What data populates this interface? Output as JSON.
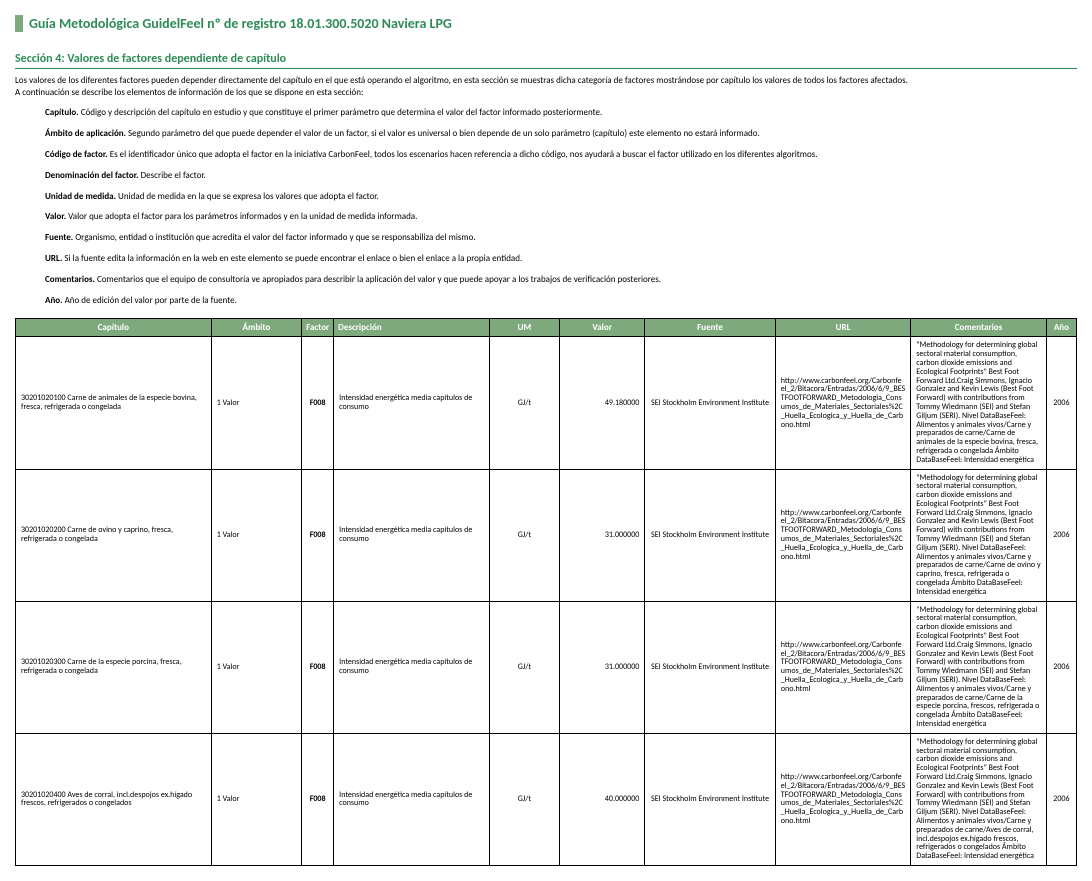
{
  "header": {
    "title": "Guía Metodológica GuidelFeel nº de registro 18.01.300.5020 Naviera LPG"
  },
  "section": {
    "title": "Sección 4: Valores de factores dependiente de capítulo",
    "intro_line1": "Los valores de los diferentes factores pueden depender directamente del capítulo en el que está operando el algoritmo, en esta sección se muestras dicha categoría de factores mostrándose por capítulo los valores de todos los factores afectados.",
    "intro_line2": "A continuación se describe los elementos de información de los que se dispone en esta sección:"
  },
  "definitions": [
    {
      "term": "Capítulo.",
      "desc": " Código y descripción del capítulo en estudio y que constituye el primer parámetro que determina el valor del factor informado posteriormente."
    },
    {
      "term": "Ámbito de aplicación.",
      "desc": " Segundo parámetro del que puede depender el valor de un factor, si el valor es universal o bien depende de un solo parámetro (capítulo) este elemento no estará informado."
    },
    {
      "term": "Código de factor.",
      "desc": " Es el identificador único que adopta el factor en la iniciativa CarbonFeel, todos los escenarios hacen referencia a dicho código, nos ayudará a buscar el factor utilizado en los diferentes algoritmos."
    },
    {
      "term": "Denominación del factor.",
      "desc": " Describe el factor."
    },
    {
      "term": "Unidad de medida.",
      "desc": " Unidad de medida en la que se expresa los valores que adopta el factor."
    },
    {
      "term": "Valor.",
      "desc": " Valor que adopta el factor para los parámetros informados y en la unidad de medida informada."
    },
    {
      "term": "Fuente.",
      "desc": " Organismo, entidad o institución que acredita el valor del factor informado y que se responsabiliza del mismo."
    },
    {
      "term": "URL.",
      "desc": " Si la fuente edita la información en la web en este elemento se puede encontrar el enlace o bien el enlace a la propia entidad."
    },
    {
      "term": "Comentarios.",
      "desc": " Comentarios que el equipo de consultoría ve apropiados para describir la aplicación del valor y que puede apoyar a los trabajos de verificación posteriores."
    },
    {
      "term": "Año.",
      "desc": " Año de edición del valor por parte de la fuente."
    }
  ],
  "table": {
    "headers": {
      "capitulo": "Capítulo",
      "ambito": "Ámbito",
      "factor": "Factor",
      "descripcion": "Descripción",
      "um": "UM",
      "valor": "Valor",
      "fuente": "Fuente",
      "url": "URL",
      "comentarios": "Comentarios",
      "ano": "Año"
    },
    "rows": [
      {
        "capitulo": "30201020100 Carne de animales de la especie bovina, fresca, refrigerada o congelada",
        "ambito": "1 Valor",
        "factor": "F008",
        "descripcion": "Intensidad energética media capítulos de consumo",
        "um": "GJ/t",
        "valor": "49.180000",
        "fuente": "SEI Stockholm Environment Institute",
        "url": "http://www.carbonfeel.org/Carbonfeel_2/Bitacora/Entradas/2006/6/9_BESTFOOTFORWARD_Metodologia_Consumos_de_Materiales_Sectoriales%2C_Huella_Ecologica_y_Huella_de_Carbono.html",
        "comentarios": "\"Methodology for determining global sectoral material consumption, carbon dioxide emissions and Ecological Footprints\" Best Foot Forward Ltd.Craig Simmons, Ignacio Gonzalez and Kevin Lewis (Best Foot Forward) with contributions from Tommy Wiedmann (SEI) and Stefan Giljum (SERI).  Nivel DataBaseFeel: Alimentos y animales vivos/Carne y preparados de carne/Carne de animales de la especie bovina, fresca, refrigerada o congelada  Ámbito DataBaseFeel: Intensidad energética",
        "ano": "2006"
      },
      {
        "capitulo": "30201020200 Carne de ovino y caprino, fresca, refrigerada o congelada",
        "ambito": "1 Valor",
        "factor": "F008",
        "descripcion": "Intensidad energética media capítulos de consumo",
        "um": "GJ/t",
        "valor": "31.000000",
        "fuente": "SEI Stockholm Environment Institute",
        "url": "http://www.carbonfeel.org/Carbonfeel_2/Bitacora/Entradas/2006/6/9_BESTFOOTFORWARD_Metodologia_Consumos_de_Materiales_Sectoriales%2C_Huella_Ecologica_y_Huella_de_Carbono.html",
        "comentarios": "\"Methodology for determining global sectoral material consumption, carbon dioxide emissions and Ecological Footprints\" Best Foot Forward Ltd.Craig Simmons, Ignacio Gonzalez and Kevin Lewis (Best Foot Forward) with contributions from Tommy Wiedmann (SEI) and Stefan Giljum (SERI).  Nivel DataBaseFeel: Alimentos y animales vivos/Carne y preparados de carne/Carne de ovino y caprino, fresca, refrigerada o congelada  Ámbito DataBaseFeel: Intensidad energética",
        "ano": "2006"
      },
      {
        "capitulo": "30201020300 Carne de la especie porcina, fresca, refrigerada o congelada",
        "ambito": "1 Valor",
        "factor": "F008",
        "descripcion": "Intensidad energética media capítulos de consumo",
        "um": "GJ/t",
        "valor": "31.000000",
        "fuente": "SEI Stockholm Environment Institute",
        "url": "http://www.carbonfeel.org/Carbonfeel_2/Bitacora/Entradas/2006/6/9_BESTFOOTFORWARD_Metodologia_Consumos_de_Materiales_Sectoriales%2C_Huella_Ecologica_y_Huella_de_Carbono.html",
        "comentarios": "\"Methodology for determining global sectoral material consumption, carbon dioxide emissions and Ecological Footprints\" Best Foot Forward Ltd.Craig Simmons, Ignacio Gonzalez and Kevin Lewis (Best Foot Forward) with contributions from Tommy Wiedmann (SEI) and Stefan Giljum (SERI).  Nivel DataBaseFeel: Alimentos y animales vivos/Carne y preparados de carne/Carne de la especie porcina, frescos, refrigerada o congelada  Ámbito DataBaseFeel: Intensidad energética",
        "ano": "2006"
      },
      {
        "capitulo": "30201020400 Aves de corral, incl.despojos ex.hígado frescos, refrigerados o congelados",
        "ambito": "1 Valor",
        "factor": "F008",
        "descripcion": "Intensidad energética media capítulos de consumo",
        "um": "GJ/t",
        "valor": "40.000000",
        "fuente": "SEI Stockholm Environment Institute",
        "url": "http://www.carbonfeel.org/Carbonfeel_2/Bitacora/Entradas/2006/6/9_BESTFOOTFORWARD_Metodologia_Consumos_de_Materiales_Sectoriales%2C_Huella_Ecologica_y_Huella_de_Carbono.html",
        "comentarios": "\"Methodology for determining global sectoral material consumption, carbon dioxide emissions and Ecological Footprints\" Best Foot Forward Ltd.Craig Simmons, Ignacio Gonzalez and Kevin Lewis (Best Foot Forward) with contributions from Tommy Wiedmann (SEI) and Stefan Giljum (SERI).  Nivel DataBaseFeel: Alimentos y animales vivos/Carne y preparados de carne/Aves de corral, incl.despojos ex.hígado frescos, refrigerados o congelados  Ámbito DataBaseFeel: Intensidad energética",
        "ano": "2006"
      }
    ]
  }
}
